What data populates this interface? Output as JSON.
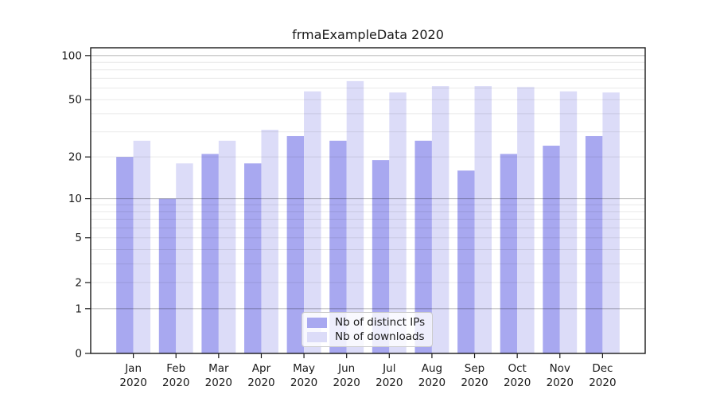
{
  "chart_data": {
    "type": "bar",
    "title": "frmaExampleData 2020",
    "year": "2020",
    "categories": [
      "Jan",
      "Feb",
      "Mar",
      "Apr",
      "May",
      "Jun",
      "Jul",
      "Aug",
      "Sep",
      "Oct",
      "Nov",
      "Dec"
    ],
    "series": [
      {
        "name": "Nb of distinct IPs",
        "color": "#a8a8f0",
        "values": [
          20,
          10,
          21,
          18,
          28,
          26,
          19,
          26,
          16,
          21,
          24,
          28
        ]
      },
      {
        "name": "Nb of downloads",
        "color": "#dcdcf8",
        "values": [
          26,
          18,
          26,
          31,
          57,
          67,
          56,
          62,
          62,
          61,
          57,
          56
        ]
      }
    ],
    "xlabel": "",
    "ylabel": "",
    "yscale": "log1p",
    "ylim": [
      0,
      113
    ],
    "yticks": [
      100,
      50,
      20,
      10,
      5,
      2,
      1,
      0
    ],
    "major_gridlines": [
      1,
      10,
      100
    ],
    "minor_gridlines": [
      2,
      3,
      4,
      5,
      6,
      7,
      8,
      9,
      20,
      30,
      40,
      50,
      60,
      70,
      80,
      90
    ],
    "grid": true,
    "legend_position": "lower center",
    "axis_color": "#1a1a1a",
    "major_grid_color": "rgba(0,0,0,0.25)",
    "minor_grid_color": "rgba(0,0,0,0.085)"
  }
}
